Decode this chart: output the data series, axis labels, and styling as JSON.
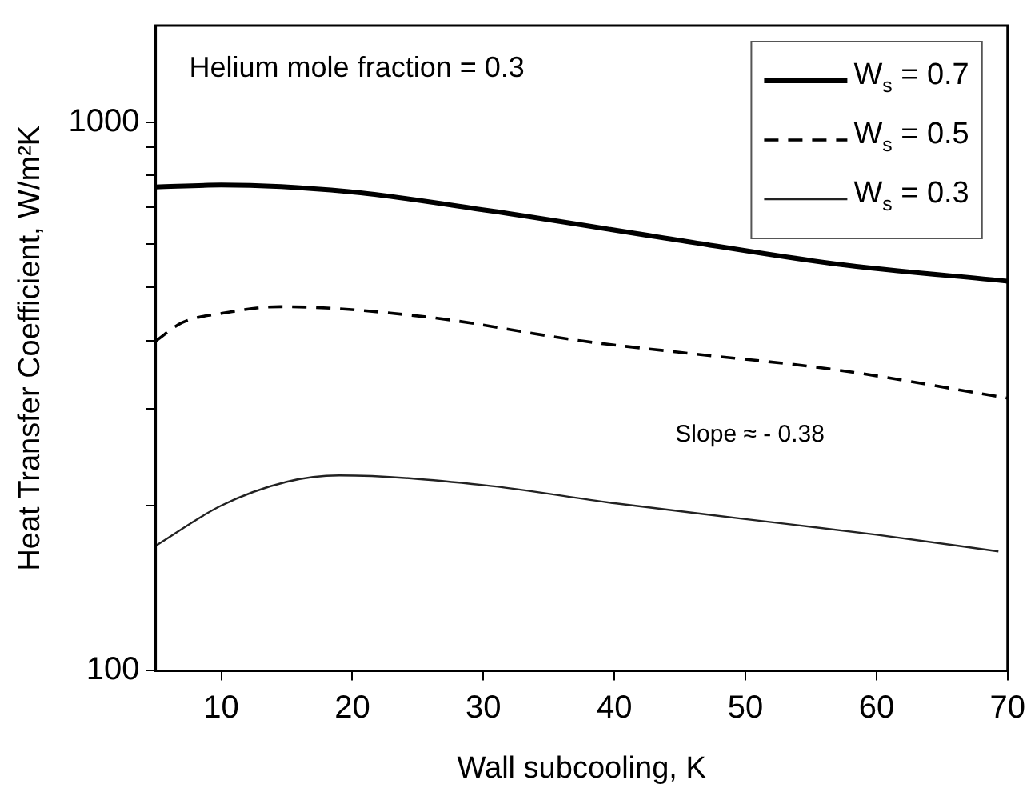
{
  "chart_data": {
    "type": "line",
    "xlabel": "Wall subcooling, K",
    "ylabel": "Heat Transfer Coefficient, W/m²K",
    "annotations": [
      "Helium mole fraction = 0.3",
      "Slope ≈ - 0.38"
    ],
    "log": "y",
    "grid": false,
    "legend": "top right",
    "marker": "none",
    "xlim": [
      5,
      70
    ],
    "xticks": [
      10,
      20,
      30,
      40,
      50,
      60,
      70
    ],
    "ylim": [
      100,
      1500
    ],
    "yticks": [
      100,
      {
        "value": 200,
        "label": null
      },
      {
        "value": 300,
        "label": null
      },
      {
        "value": 400,
        "label": null
      },
      {
        "value": 500,
        "label": null
      },
      {
        "value": 600,
        "label": null
      },
      {
        "value": 700,
        "label": null
      },
      {
        "value": 800,
        "label": null
      },
      {
        "value": 900,
        "label": null
      },
      1000
    ],
    "series": [
      {
        "name": "W$_{s}$ = 0.7",
        "color": "#000000",
        "line_style": "solid",
        "x": [
          5,
          10,
          19.7,
          30.4,
          44.8,
          56.8,
          70
        ],
        "values": [
          762,
          768,
          747,
          690,
          610,
          552,
          513
        ]
      },
      {
        "name": "W$_{s}$ = 0.5",
        "color": "#000000",
        "line_style": "dashed",
        "x": [
          5,
          7,
          10,
          14.5,
          25.5,
          37.6,
          44.8,
          56.8,
          70
        ],
        "values": [
          399,
          431,
          448,
          461,
          442,
          399,
          381,
          354,
          314
        ]
      },
      {
        "name": "W$_{s}$ = 0.3",
        "color": "#222222",
        "line_style": "solid",
        "x": [
          5,
          10,
          15,
          19,
          30,
          40,
          50,
          60,
          69.3
        ],
        "values": [
          169,
          200,
          221,
          227,
          218,
          202,
          189,
          177,
          165
        ]
      }
    ]
  }
}
